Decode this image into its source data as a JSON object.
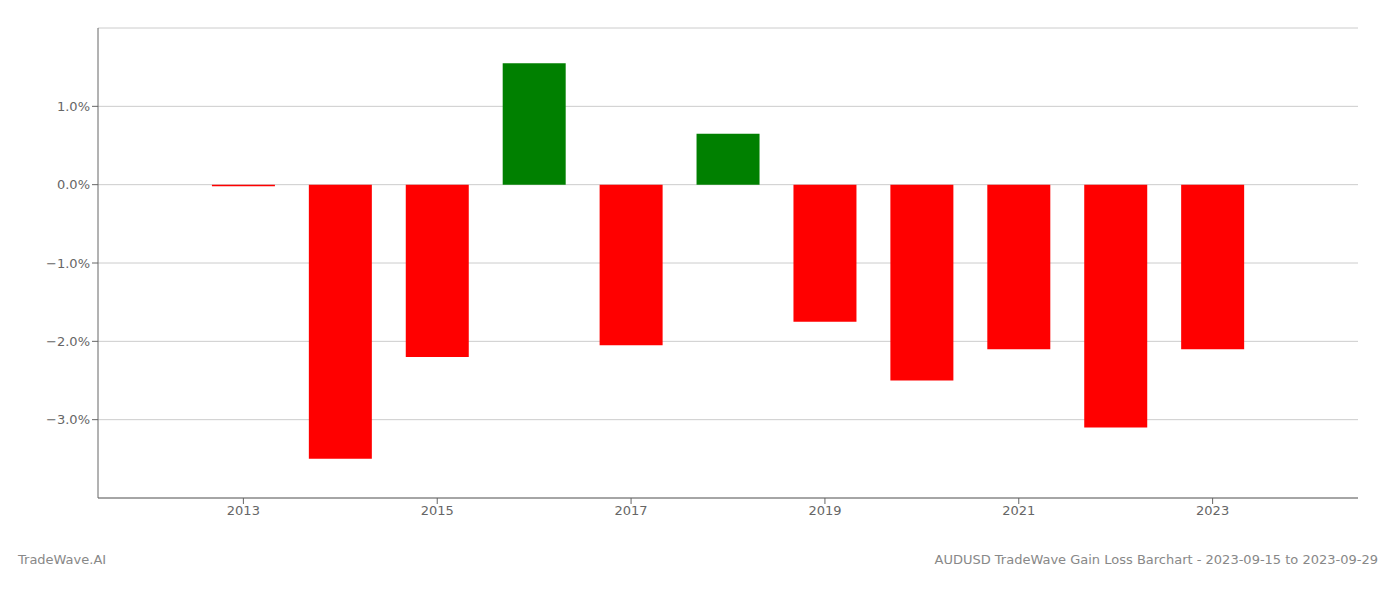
{
  "chart_data": {
    "type": "bar",
    "x": [
      2013,
      2014,
      2015,
      2016,
      2017,
      2018,
      2019,
      2020,
      2021,
      2022,
      2023
    ],
    "values": [
      -0.02,
      -3.5,
      -2.2,
      1.55,
      -2.05,
      0.65,
      -1.75,
      -2.5,
      -2.1,
      -3.1,
      -2.1
    ],
    "colors": [
      "#ff0000",
      "#ff0000",
      "#ff0000",
      "#008000",
      "#ff0000",
      "#008000",
      "#ff0000",
      "#ff0000",
      "#ff0000",
      "#ff0000",
      "#ff0000"
    ],
    "xlim": [
      2011.5,
      2024.5
    ],
    "xticks": [
      2013,
      2015,
      2017,
      2019,
      2021,
      2023
    ],
    "ylim": [
      -4.0,
      2.0
    ],
    "yticks": [
      {
        "value": -3.0,
        "label": "−3.0%"
      },
      {
        "value": -2.0,
        "label": "−2.0%"
      },
      {
        "value": -1.0,
        "label": "−1.0%"
      },
      {
        "value": 0.0,
        "label": "0.0%"
      },
      {
        "value": 1.0,
        "label": "1.0%"
      }
    ],
    "grid": true,
    "annotations": [
      "TradeWave.AI",
      "AUDUSD TradeWave Gain Loss Barchart - 2023-09-15 to 2023-09-29"
    ]
  }
}
